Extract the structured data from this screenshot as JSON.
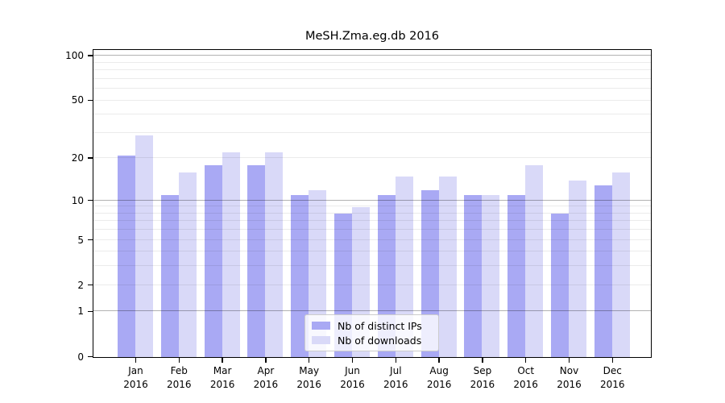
{
  "title": "MeSH.Zma.eg.db 2016",
  "chart_data": {
    "type": "bar",
    "title": "MeSH.Zma.eg.db 2016",
    "categories": [
      "Jan",
      "Feb",
      "Mar",
      "Apr",
      "May",
      "Jun",
      "Jul",
      "Aug",
      "Sep",
      "Oct",
      "Nov",
      "Dec"
    ],
    "category_year": "2016",
    "series": [
      {
        "name": "Nb of distinct IPs",
        "color": "#a9a9f4",
        "values": [
          21,
          11,
          18,
          18,
          11,
          8,
          11,
          12,
          11,
          11,
          8,
          13
        ]
      },
      {
        "name": "Nb of downloads",
        "color": "#d9d9f8",
        "values": [
          29,
          16,
          22,
          22,
          12,
          9,
          15,
          15,
          11,
          18,
          14,
          16
        ]
      }
    ],
    "yticks": [
      0,
      1,
      2,
      5,
      10,
      20,
      50,
      100
    ],
    "ylim": [
      0,
      100
    ],
    "yscale": "log1p",
    "grid": "on",
    "gridline_values_minor": [
      2,
      3,
      4,
      5,
      6,
      7,
      8,
      9,
      20,
      30,
      40,
      50,
      60,
      70,
      80,
      90
    ],
    "gridline_values_major": [
      1,
      10,
      100
    ],
    "xlabel": "",
    "ylabel": "",
    "legend_position": "bottom-center"
  }
}
